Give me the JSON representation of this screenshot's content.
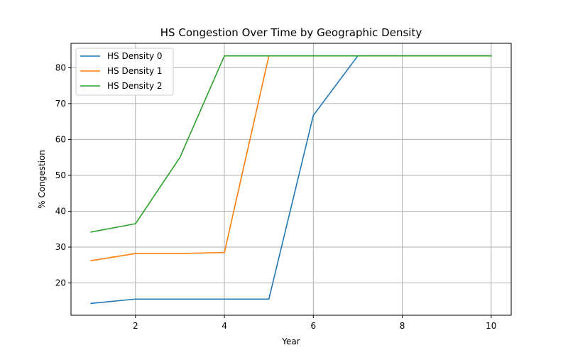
{
  "chart_data": {
    "type": "line",
    "title": "HS Congestion Over Time by Geographic Density",
    "xlabel": "Year",
    "ylabel": "% Congestion",
    "x": [
      1,
      2,
      3,
      4,
      5,
      6,
      7,
      8,
      9,
      10
    ],
    "xlim": [
      0.55,
      10.45
    ],
    "ylim": [
      11.0,
      86.8
    ],
    "xticks": [
      2,
      4,
      6,
      8,
      10
    ],
    "yticks": [
      20,
      30,
      40,
      50,
      60,
      70,
      80
    ],
    "grid": true,
    "legend_position": "top-left",
    "series": [
      {
        "name": "HS Density 0",
        "color": "#1f77b4",
        "values": [
          14.3,
          15.5,
          15.5,
          15.5,
          15.5,
          66.7,
          83.3,
          83.3,
          83.3,
          83.3
        ]
      },
      {
        "name": "HS Density 1",
        "color": "#ff7f0e",
        "values": [
          26.2,
          28.2,
          28.2,
          28.5,
          83.3,
          83.3,
          83.3,
          83.3,
          83.3,
          83.3
        ]
      },
      {
        "name": "HS Density 2",
        "color": "#2ca02c",
        "values": [
          34.2,
          36.5,
          55.0,
          83.3,
          83.3,
          83.3,
          83.3,
          83.3,
          83.3,
          83.3
        ]
      }
    ]
  }
}
